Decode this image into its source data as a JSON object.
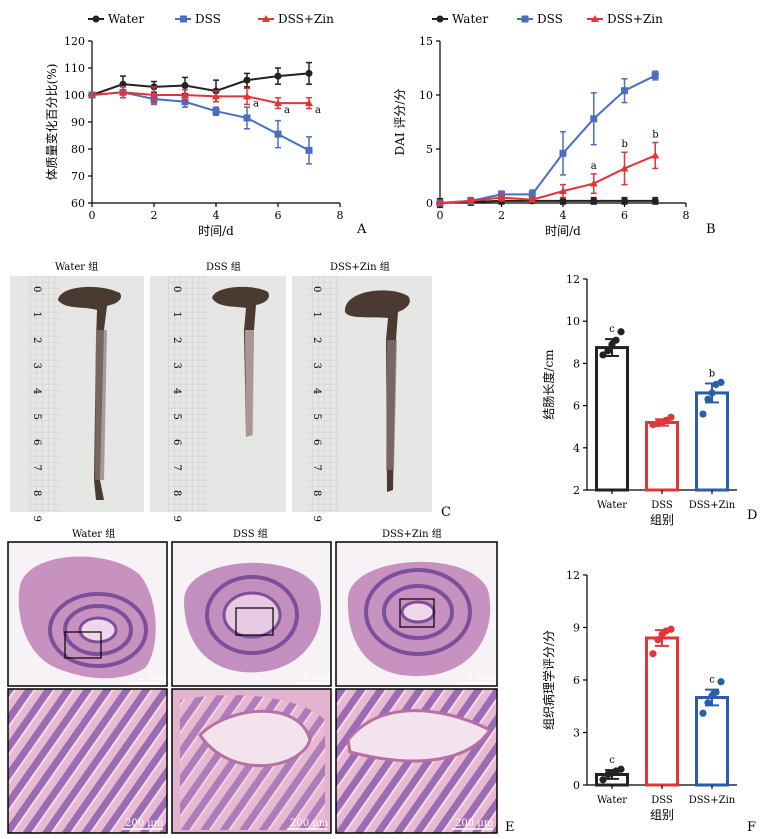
{
  "colors": {
    "water": "#222222",
    "dss": "#4a6fbf",
    "zin": "#e0363a",
    "zin_bar": "#2a5ea8"
  },
  "legend": [
    "Water",
    "DSS",
    "DSS+Zin"
  ],
  "panel_labels": {
    "a": "A",
    "b": "B",
    "c": "C",
    "d": "D",
    "e": "E",
    "f": "F"
  },
  "chart_data": [
    {
      "id": "A",
      "type": "line",
      "xlabel": "时间/d",
      "ylabel": "体质量变化百分比(%)",
      "xlim": [
        0,
        8
      ],
      "ylim": [
        60,
        120
      ],
      "xticks": [
        0,
        2,
        4,
        6,
        8
      ],
      "yticks": [
        60,
        70,
        80,
        90,
        100,
        110,
        120
      ],
      "x": [
        0,
        1,
        2,
        3,
        4,
        5,
        6,
        7
      ],
      "series": [
        {
          "name": "Water",
          "values": [
            100,
            104,
            103,
            103.5,
            101.5,
            105.5,
            107,
            108
          ],
          "err": [
            0,
            3,
            2,
            3,
            4,
            2.5,
            3,
            4
          ]
        },
        {
          "name": "DSS",
          "values": [
            100,
            101,
            98.5,
            97.5,
            94,
            91.5,
            85.5,
            79.5
          ],
          "err": [
            0,
            2,
            2,
            2,
            1.5,
            4,
            5,
            5
          ]
        },
        {
          "name": "DSS+Zin",
          "values": [
            100,
            101,
            100,
            100,
            99.5,
            99.5,
            97,
            97
          ],
          "err": [
            0,
            2,
            3,
            2,
            2,
            3,
            2,
            2
          ]
        }
      ],
      "annotations": [
        {
          "series": "DSS+Zin",
          "x": 5,
          "text": "a"
        },
        {
          "series": "DSS+Zin",
          "x": 6,
          "text": "a"
        },
        {
          "series": "DSS+Zin",
          "x": 7,
          "text": "a"
        }
      ]
    },
    {
      "id": "B",
      "type": "line",
      "xlabel": "时间/d",
      "ylabel": "DAI 评分/分",
      "xlim": [
        0,
        8
      ],
      "ylim": [
        0,
        15
      ],
      "xticks": [
        0,
        2,
        4,
        6,
        8
      ],
      "yticks": [
        0,
        5,
        10,
        15
      ],
      "x": [
        0,
        1,
        2,
        3,
        4,
        5,
        6,
        7
      ],
      "series": [
        {
          "name": "Water",
          "values": [
            0,
            0.1,
            0.2,
            0.2,
            0.2,
            0.2,
            0.2,
            0.2
          ],
          "err": [
            0.4,
            0.3,
            0.3,
            0.2,
            0.3,
            0.3,
            0.3,
            0.3
          ]
        },
        {
          "name": "DSS",
          "values": [
            0,
            0.2,
            0.8,
            0.8,
            4.6,
            7.8,
            10.4,
            11.8
          ],
          "err": [
            0,
            0.3,
            0.3,
            0.4,
            2,
            2.4,
            1.1,
            0.4
          ]
        },
        {
          "name": "DSS+Zin",
          "values": [
            0,
            0.2,
            0.5,
            0.3,
            1.1,
            1.8,
            3.2,
            4.4
          ],
          "err": [
            0,
            0.2,
            0.3,
            0.2,
            0.6,
            0.9,
            1.5,
            1.2
          ]
        }
      ],
      "annotations": [
        {
          "series": "DSS+Zin",
          "x": 5,
          "text": "a"
        },
        {
          "series": "DSS+Zin",
          "x": 6,
          "text": "b"
        },
        {
          "series": "DSS+Zin",
          "x": 7,
          "text": "b"
        }
      ]
    },
    {
      "id": "D",
      "type": "bar",
      "xlabel": "组别",
      "ylabel": "结肠长度/cm",
      "ylim": [
        2,
        12
      ],
      "yticks": [
        2,
        4,
        6,
        8,
        10,
        12
      ],
      "categories": [
        "Water",
        "DSS",
        "DSS+Zin"
      ],
      "values": [
        8.75,
        5.2,
        6.6
      ],
      "err": [
        0.4,
        0.15,
        0.45
      ],
      "points": [
        [
          8.4,
          8.6,
          8.9,
          9.1,
          9.5
        ],
        [
          5.1,
          5.15,
          5.2,
          5.3,
          5.45
        ],
        [
          5.6,
          6.3,
          6.6,
          7.0,
          7.1
        ]
      ],
      "letters": [
        "c",
        "",
        "b"
      ]
    },
    {
      "id": "F",
      "type": "bar",
      "xlabel": "组别",
      "ylabel": "组织病理学评分/分",
      "ylim": [
        0,
        12
      ],
      "yticks": [
        0,
        3,
        6,
        9,
        12
      ],
      "categories": [
        "Water",
        "DSS",
        "DSS+Zin"
      ],
      "values": [
        0.6,
        8.4,
        5.0
      ],
      "err": [
        0.25,
        0.45,
        0.45
      ],
      "points": [
        [
          0.3,
          0.6,
          0.7,
          0.8,
          0.9
        ],
        [
          7.5,
          8.3,
          8.6,
          8.8,
          8.9
        ],
        [
          4.1,
          4.7,
          5.1,
          5.3,
          5.9
        ]
      ],
      "letters": [
        "c",
        "",
        "c"
      ]
    }
  ],
  "photo_titles": [
    "Water 组",
    "DSS 组",
    "DSS+Zin 组"
  ],
  "ruler_numbers": [
    "0",
    "1",
    "2",
    "3",
    "4",
    "5",
    "6",
    "7",
    "8",
    "9"
  ],
  "histo_titles": [
    "Water 组",
    "DSS 组",
    "DSS+Zin 组"
  ],
  "scale_low": "2 mm",
  "scale_high": "200 μm"
}
